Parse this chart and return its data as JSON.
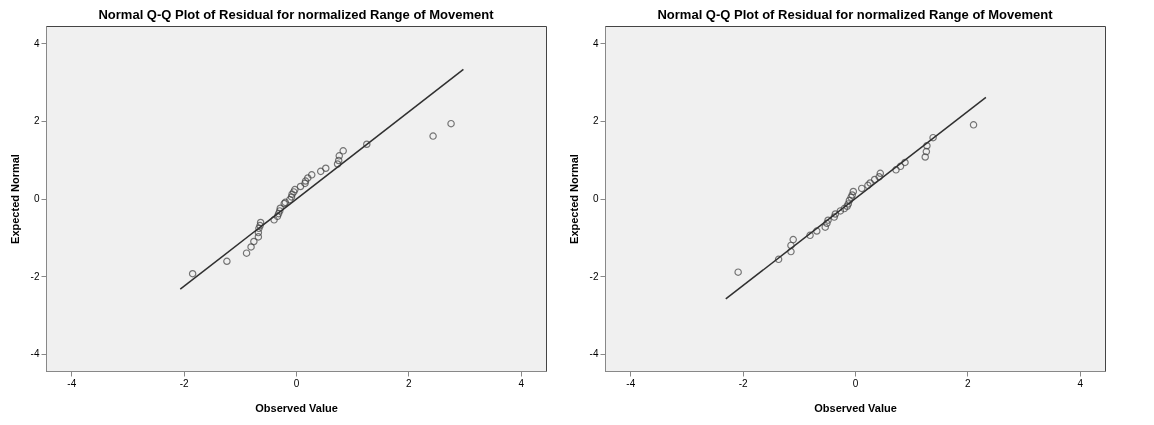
{
  "chart_data": [
    {
      "type": "scatter",
      "title": "Normal Q-Q Plot of Residual for normalized Range of Movement",
      "xlabel": "Observed Value",
      "ylabel": "Expected Normal",
      "xlim": [
        -4.45,
        4.45
      ],
      "ylim": [
        -4.45,
        4.45
      ],
      "xticks": [
        -4,
        -2,
        0,
        2,
        4
      ],
      "yticks": [
        -4,
        -2,
        0,
        2,
        4
      ],
      "grid": false,
      "series": [
        {
          "type": "scatter",
          "marker": "circle",
          "color": "#404040",
          "x": [
            -1.84,
            -1.23,
            -0.88,
            -0.8,
            -0.75,
            -0.67,
            -0.67,
            -0.66,
            -0.64,
            -0.63,
            -0.39,
            -0.33,
            -0.31,
            -0.29,
            -0.28,
            -0.21,
            -0.19,
            -0.11,
            -0.08,
            -0.07,
            -0.04,
            -0.02,
            0.08,
            0.16,
            0.17,
            0.21,
            0.28,
            0.44,
            0.53,
            0.74,
            0.76,
            0.77,
            0.84,
            1.26,
            2.44,
            2.76
          ],
          "values": [
            -1.94,
            -1.62,
            -1.41,
            -1.25,
            -1.11,
            -0.99,
            -0.88,
            -0.77,
            -0.7,
            -0.62,
            -0.55,
            -0.46,
            -0.39,
            -0.32,
            -0.25,
            -0.13,
            -0.1,
            -0.03,
            0.04,
            0.11,
            0.17,
            0.23,
            0.31,
            0.39,
            0.45,
            0.53,
            0.61,
            0.7,
            0.78,
            0.89,
            0.98,
            1.1,
            1.23,
            1.4,
            1.61,
            1.93
          ]
        },
        {
          "type": "line",
          "marker": "none",
          "line_style": "solid",
          "color": "#303030",
          "x": [
            -2.06,
            2.98
          ],
          "values": [
            -2.34,
            3.33
          ]
        }
      ]
    },
    {
      "type": "scatter",
      "title": "Normal Q-Q Plot of Residual for normalized Range of Movement",
      "xlabel": "Observed Value",
      "ylabel": "Expected Normal",
      "xlim": [
        -4.45,
        4.45
      ],
      "ylim": [
        -4.45,
        4.45
      ],
      "xticks": [
        -4,
        -2,
        0,
        2,
        4
      ],
      "yticks": [
        -4,
        -2,
        0,
        2,
        4
      ],
      "grid": false,
      "series": [
        {
          "type": "scatter",
          "marker": "circle",
          "color": "#404040",
          "x": [
            -2.08,
            -1.36,
            -1.14,
            -1.14,
            -1.1,
            -0.8,
            -0.68,
            -0.53,
            -0.5,
            -0.48,
            -0.37,
            -0.35,
            -0.26,
            -0.19,
            -0.14,
            -0.12,
            -0.1,
            -0.07,
            -0.05,
            -0.03,
            0.12,
            0.23,
            0.27,
            0.35,
            0.43,
            0.45,
            0.73,
            0.81,
            0.89,
            1.25,
            1.27,
            1.28,
            1.39,
            2.11
          ],
          "values": [
            -1.9,
            -1.57,
            -1.37,
            -1.21,
            -1.06,
            -0.95,
            -0.84,
            -0.74,
            -0.64,
            -0.56,
            -0.48,
            -0.4,
            -0.32,
            -0.26,
            -0.2,
            -0.14,
            -0.05,
            0.03,
            0.09,
            0.18,
            0.26,
            0.34,
            0.4,
            0.49,
            0.56,
            0.65,
            0.74,
            0.83,
            0.93,
            1.07,
            1.21,
            1.36,
            1.57,
            1.9
          ]
        },
        {
          "type": "line",
          "marker": "none",
          "line_style": "solid",
          "color": "#303030",
          "x": [
            -2.3,
            2.33
          ],
          "values": [
            -2.59,
            2.61
          ]
        }
      ]
    }
  ]
}
